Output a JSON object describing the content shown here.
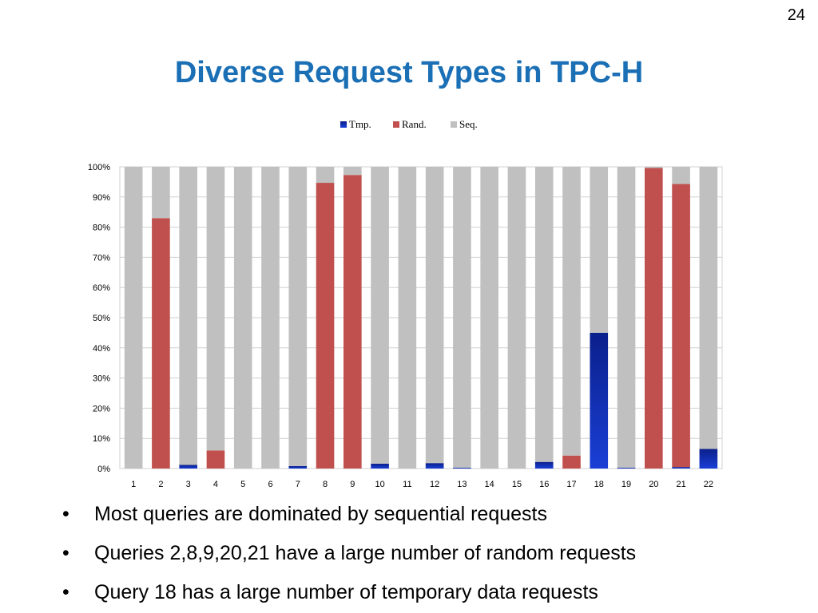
{
  "slide": {
    "number": "24",
    "title": "Diverse Request Types in TPC-H"
  },
  "bullet_marker": "•",
  "bullets": [
    "Most queries are dominated by sequential requests",
    "Queries 2,8,9,20,21 have a large number of random requests",
    "Query 18 has a large number of temporary data requests"
  ],
  "colors": {
    "title": "#1a6fb5",
    "tmp": "#1a3fd6",
    "rand": "#c0504d",
    "seq": "#c0c0c0",
    "grid": "#d0d0d0"
  },
  "chart_data": {
    "type": "bar",
    "stacked": true,
    "categories": [
      "1",
      "2",
      "3",
      "4",
      "5",
      "6",
      "7",
      "8",
      "9",
      "10",
      "11",
      "12",
      "13",
      "14",
      "15",
      "16",
      "17",
      "18",
      "19",
      "20",
      "21",
      "22"
    ],
    "series": [
      {
        "name": "Tmp.",
        "values": [
          0,
          0,
          1.2,
          0,
          0,
          0,
          0.8,
          0,
          0,
          1.6,
          0,
          1.8,
          0.3,
          0,
          0,
          2.2,
          0,
          45,
          0.3,
          0,
          0.5,
          6.5
        ]
      },
      {
        "name": "Rand.",
        "values": [
          0,
          83,
          0,
          6,
          0,
          0,
          0,
          94.7,
          97.3,
          0,
          0,
          0,
          0,
          0,
          0,
          0,
          4.3,
          0,
          0,
          99.6,
          93.8,
          0
        ]
      },
      {
        "name": "Seq.",
        "values": [
          100,
          17,
          98.8,
          94,
          100,
          100,
          99.2,
          5.3,
          2.7,
          98.4,
          100,
          98.2,
          99.7,
          100,
          100,
          97.8,
          95.7,
          55,
          99.7,
          0.4,
          5.7,
          93.5
        ]
      }
    ],
    "yticks": [
      "0%",
      "10%",
      "20%",
      "30%",
      "40%",
      "50%",
      "60%",
      "70%",
      "80%",
      "90%",
      "100%"
    ],
    "ylim": [
      0,
      100
    ],
    "grid": true,
    "legend": "top-center"
  }
}
